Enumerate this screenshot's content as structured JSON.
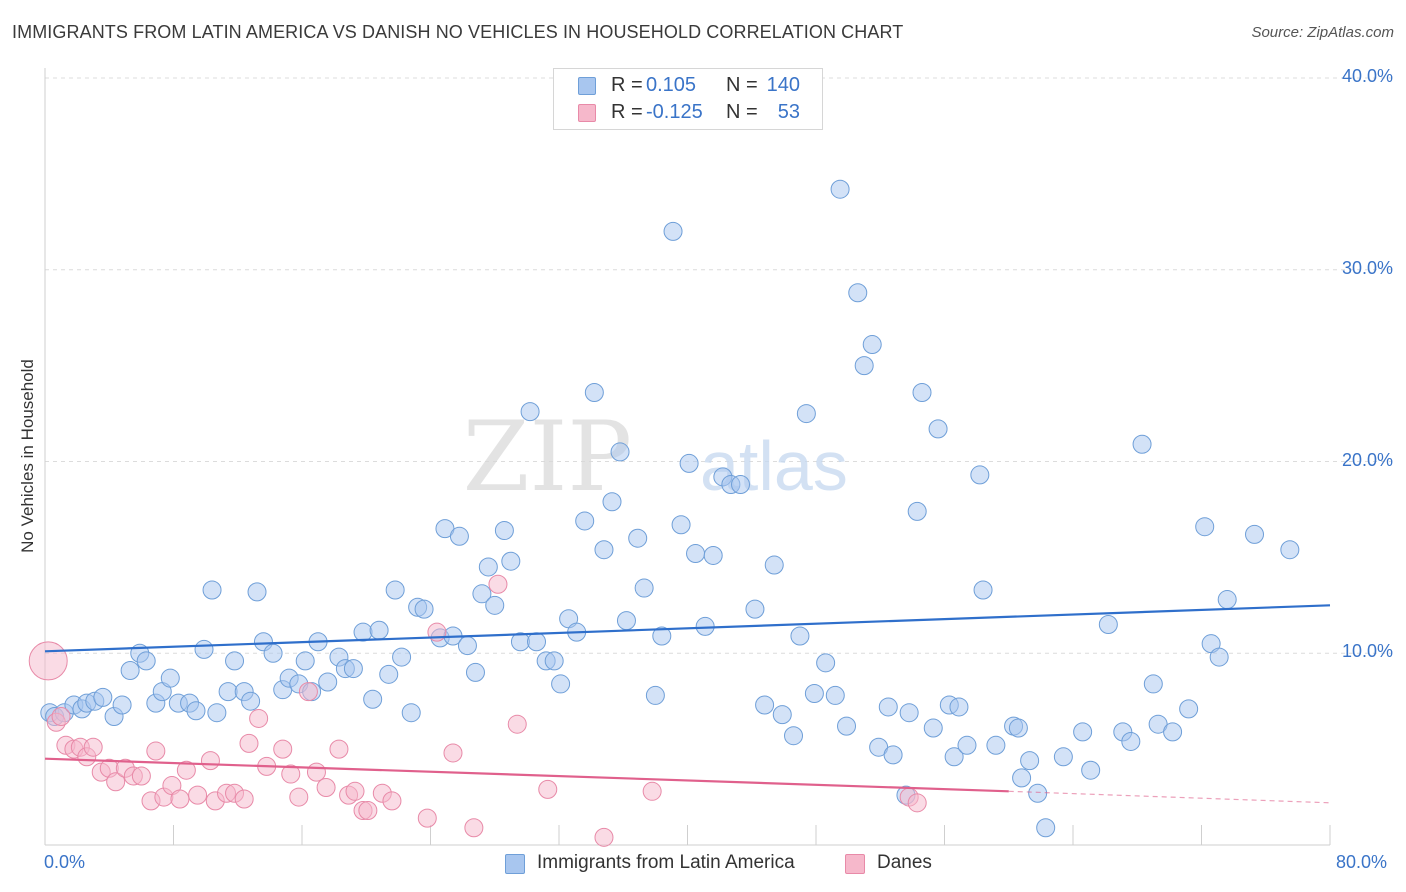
{
  "header": {
    "title": "IMMIGRANTS FROM LATIN AMERICA VS DANISH NO VEHICLES IN HOUSEHOLD CORRELATION CHART",
    "source": "Source: ZipAtlas.com"
  },
  "stats_legend": {
    "rows": [
      {
        "r_label": "R =",
        "r_value": "0.105",
        "n_label": "N =",
        "n_value": "140"
      },
      {
        "r_label": "R =",
        "r_value": "-0.125",
        "n_label": "N =",
        "n_value": "53"
      }
    ]
  },
  "colors": {
    "blue_fill": "#a8c6ef",
    "blue_stroke": "#6f9fd8",
    "blue_line": "#2f6fcb",
    "pink_fill": "#f6b8cb",
    "pink_stroke": "#e88aa8",
    "pink_line": "#e0608c",
    "tick_text": "#3a74c8",
    "grid": "#dcdcdc"
  },
  "watermark": {
    "part1": "ZIP",
    "part2": "atlas"
  },
  "chart_data": {
    "type": "scatter",
    "title": "IMMIGRANTS FROM LATIN AMERICA VS DANISH NO VEHICLES IN HOUSEHOLD CORRELATION CHART",
    "xlabel": "",
    "ylabel": "No Vehicles in Household",
    "xlim": [
      0,
      80
    ],
    "ylim": [
      0,
      40
    ],
    "x_tick_labels": [
      "0.0%",
      "80.0%"
    ],
    "y_ticks": [
      10,
      20,
      30,
      40
    ],
    "y_tick_labels": [
      "10.0%",
      "20.0%",
      "30.0%",
      "40.0%"
    ],
    "grid": "horizontal dashed",
    "legend_placement": "bottom",
    "series": [
      {
        "name": "Immigrants from Latin America",
        "color": "#a8c6ef",
        "points": [
          [
            0.3,
            6.9
          ],
          [
            0.6,
            6.7
          ],
          [
            1.2,
            6.9
          ],
          [
            1.8,
            7.3
          ],
          [
            2.3,
            7.1
          ],
          [
            2.6,
            7.4
          ],
          [
            3.1,
            7.5
          ],
          [
            3.6,
            7.7
          ],
          [
            4.3,
            6.7
          ],
          [
            4.8,
            7.3
          ],
          [
            5.3,
            9.1
          ],
          [
            5.9,
            10.0
          ],
          [
            6.3,
            9.6
          ],
          [
            6.9,
            7.4
          ],
          [
            7.3,
            8.0
          ],
          [
            7.8,
            8.7
          ],
          [
            8.3,
            7.4
          ],
          [
            9.0,
            7.4
          ],
          [
            9.4,
            7.0
          ],
          [
            9.9,
            10.2
          ],
          [
            10.4,
            13.3
          ],
          [
            10.7,
            6.9
          ],
          [
            11.4,
            8.0
          ],
          [
            11.8,
            9.6
          ],
          [
            12.4,
            8.0
          ],
          [
            12.8,
            7.5
          ],
          [
            13.2,
            13.2
          ],
          [
            13.6,
            10.6
          ],
          [
            14.2,
            10.0
          ],
          [
            14.8,
            8.1
          ],
          [
            15.2,
            8.7
          ],
          [
            15.8,
            8.4
          ],
          [
            16.2,
            9.6
          ],
          [
            16.6,
            8.0
          ],
          [
            17.0,
            10.6
          ],
          [
            17.6,
            8.5
          ],
          [
            18.3,
            9.8
          ],
          [
            18.7,
            9.2
          ],
          [
            19.2,
            9.2
          ],
          [
            19.8,
            11.1
          ],
          [
            20.4,
            7.6
          ],
          [
            20.8,
            11.2
          ],
          [
            21.4,
            8.9
          ],
          [
            21.8,
            13.3
          ],
          [
            22.2,
            9.8
          ],
          [
            22.8,
            6.9
          ],
          [
            23.2,
            12.4
          ],
          [
            23.6,
            12.3
          ],
          [
            24.6,
            10.8
          ],
          [
            24.9,
            16.5
          ],
          [
            25.4,
            10.9
          ],
          [
            25.8,
            16.1
          ],
          [
            26.3,
            10.4
          ],
          [
            26.8,
            9.0
          ],
          [
            27.2,
            13.1
          ],
          [
            27.6,
            14.5
          ],
          [
            28.0,
            12.5
          ],
          [
            28.6,
            16.4
          ],
          [
            29.0,
            14.8
          ],
          [
            29.6,
            10.6
          ],
          [
            30.2,
            22.6
          ],
          [
            30.6,
            10.6
          ],
          [
            31.2,
            9.6
          ],
          [
            31.7,
            9.6
          ],
          [
            32.1,
            8.4
          ],
          [
            32.6,
            11.8
          ],
          [
            33.1,
            11.1
          ],
          [
            33.6,
            16.9
          ],
          [
            34.2,
            23.6
          ],
          [
            34.8,
            15.4
          ],
          [
            35.3,
            17.9
          ],
          [
            35.8,
            20.5
          ],
          [
            36.2,
            11.7
          ],
          [
            36.9,
            16.0
          ],
          [
            37.3,
            13.4
          ],
          [
            38.0,
            7.8
          ],
          [
            38.4,
            10.9
          ],
          [
            39.1,
            32.0
          ],
          [
            39.6,
            16.7
          ],
          [
            40.1,
            19.9
          ],
          [
            40.5,
            15.2
          ],
          [
            41.1,
            11.4
          ],
          [
            41.6,
            15.1
          ],
          [
            42.2,
            19.2
          ],
          [
            42.7,
            18.8
          ],
          [
            43.3,
            18.8
          ],
          [
            44.2,
            12.3
          ],
          [
            44.8,
            7.3
          ],
          [
            45.4,
            14.6
          ],
          [
            45.9,
            6.8
          ],
          [
            46.6,
            5.7
          ],
          [
            47.0,
            10.9
          ],
          [
            47.4,
            22.5
          ],
          [
            47.9,
            7.9
          ],
          [
            48.6,
            9.5
          ],
          [
            49.2,
            7.8
          ],
          [
            49.5,
            34.2
          ],
          [
            49.9,
            6.2
          ],
          [
            50.6,
            28.8
          ],
          [
            51.0,
            25.0
          ],
          [
            51.5,
            26.1
          ],
          [
            51.9,
            5.1
          ],
          [
            52.5,
            7.2
          ],
          [
            52.8,
            4.7
          ],
          [
            53.6,
            2.6
          ],
          [
            53.8,
            6.9
          ],
          [
            54.3,
            17.4
          ],
          [
            54.6,
            23.6
          ],
          [
            55.3,
            6.1
          ],
          [
            55.6,
            21.7
          ],
          [
            56.3,
            7.3
          ],
          [
            56.6,
            4.6
          ],
          [
            56.9,
            7.2
          ],
          [
            57.4,
            5.2
          ],
          [
            58.2,
            19.3
          ],
          [
            58.4,
            13.3
          ],
          [
            59.2,
            5.2
          ],
          [
            60.3,
            6.2
          ],
          [
            60.6,
            6.1
          ],
          [
            60.8,
            3.5
          ],
          [
            61.3,
            4.4
          ],
          [
            61.8,
            2.7
          ],
          [
            62.3,
            0.9
          ],
          [
            63.4,
            4.6
          ],
          [
            64.6,
            5.9
          ],
          [
            65.1,
            3.9
          ],
          [
            66.2,
            11.5
          ],
          [
            67.1,
            5.9
          ],
          [
            67.6,
            5.4
          ],
          [
            68.3,
            20.9
          ],
          [
            69.0,
            8.4
          ],
          [
            69.3,
            6.3
          ],
          [
            70.2,
            5.9
          ],
          [
            71.2,
            7.1
          ],
          [
            72.2,
            16.6
          ],
          [
            72.6,
            10.5
          ],
          [
            73.1,
            9.8
          ],
          [
            73.6,
            12.8
          ],
          [
            75.3,
            16.2
          ],
          [
            77.5,
            15.4
          ]
        ]
      },
      {
        "name": "Danes",
        "color": "#f6b8cb",
        "points": [
          [
            0.2,
            9.6
          ],
          [
            0.7,
            6.4
          ],
          [
            1.0,
            6.7
          ],
          [
            1.3,
            5.2
          ],
          [
            1.8,
            5.0
          ],
          [
            2.2,
            5.1
          ],
          [
            2.6,
            4.6
          ],
          [
            3.0,
            5.1
          ],
          [
            3.5,
            3.8
          ],
          [
            4.0,
            4.0
          ],
          [
            4.4,
            3.3
          ],
          [
            5.0,
            4.0
          ],
          [
            5.5,
            3.6
          ],
          [
            6.0,
            3.6
          ],
          [
            6.6,
            2.3
          ],
          [
            6.9,
            4.9
          ],
          [
            7.4,
            2.5
          ],
          [
            7.9,
            3.1
          ],
          [
            8.4,
            2.4
          ],
          [
            8.8,
            3.9
          ],
          [
            9.5,
            2.6
          ],
          [
            10.3,
            4.4
          ],
          [
            10.6,
            2.3
          ],
          [
            11.3,
            2.7
          ],
          [
            11.8,
            2.7
          ],
          [
            12.4,
            2.4
          ],
          [
            12.7,
            5.3
          ],
          [
            13.3,
            6.6
          ],
          [
            13.8,
            4.1
          ],
          [
            14.8,
            5.0
          ],
          [
            15.3,
            3.7
          ],
          [
            15.8,
            2.5
          ],
          [
            16.4,
            8.0
          ],
          [
            16.9,
            3.8
          ],
          [
            17.5,
            3.0
          ],
          [
            18.3,
            5.0
          ],
          [
            18.9,
            2.6
          ],
          [
            19.3,
            2.8
          ],
          [
            19.8,
            1.8
          ],
          [
            20.1,
            1.8
          ],
          [
            21.0,
            2.7
          ],
          [
            21.6,
            2.3
          ],
          [
            23.8,
            1.4
          ],
          [
            24.4,
            11.1
          ],
          [
            25.4,
            4.8
          ],
          [
            26.7,
            0.9
          ],
          [
            28.2,
            13.6
          ],
          [
            29.4,
            6.3
          ],
          [
            31.3,
            2.9
          ],
          [
            34.8,
            0.4
          ],
          [
            37.8,
            2.8
          ],
          [
            53.8,
            2.5
          ],
          [
            54.3,
            2.2
          ]
        ]
      }
    ],
    "trend_lines": [
      {
        "series": "Immigrants from Latin America",
        "x": [
          0,
          80
        ],
        "y": [
          10.1,
          12.5
        ]
      },
      {
        "series": "Danes",
        "x": [
          0,
          60
        ],
        "y": [
          4.5,
          2.8
        ],
        "dashed_extension": {
          "x": [
            60,
            80
          ],
          "y": [
            2.8,
            2.2
          ]
        }
      }
    ]
  },
  "bottom_legend": {
    "items": [
      {
        "label": "Immigrants from Latin America"
      },
      {
        "label": "Danes"
      }
    ]
  }
}
